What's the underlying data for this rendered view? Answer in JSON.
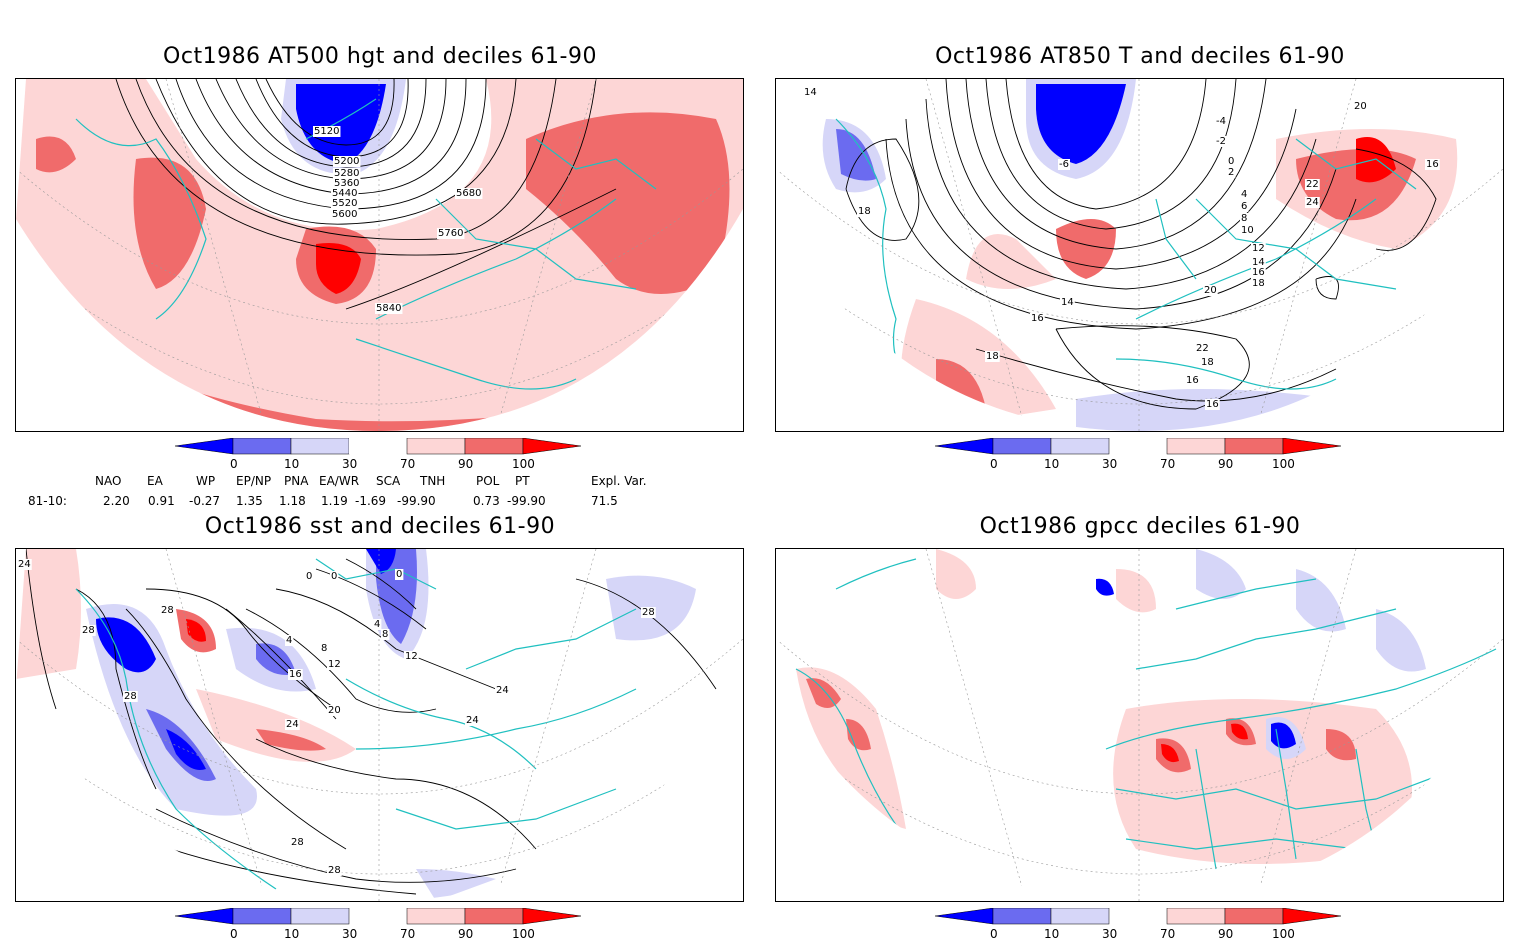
{
  "panels": {
    "p1": {
      "title": "Oct1986 AT500 hgt and deciles 61-90",
      "contour_labels": [
        "5120",
        "5200",
        "5280",
        "5360",
        "5440",
        "5520",
        "5600",
        "5680",
        "5760",
        "5840"
      ]
    },
    "p2": {
      "title": "Oct1986 AT850 T and deciles 61-90",
      "contour_labels": [
        "-6",
        "-4",
        "-2",
        "0",
        "2",
        "4",
        "6",
        "8",
        "10",
        "12",
        "14",
        "16",
        "18",
        "20",
        "22",
        "24",
        "16",
        "14",
        "16",
        "18",
        "20",
        "22",
        "18",
        "16",
        "16",
        "18",
        "14"
      ]
    },
    "p3": {
      "title": "Oct1986 sst and deciles 61-90",
      "contour_labels": [
        "24",
        "28",
        "28",
        "28",
        "0",
        "0",
        "0",
        "4",
        "8",
        "12",
        "16",
        "20",
        "24",
        "28",
        "28",
        "24",
        "24",
        "4",
        "8",
        "12",
        "28"
      ]
    },
    "p4": {
      "title": "Oct1986 gpcc deciles 61-90",
      "contour_labels": []
    }
  },
  "colorbar": {
    "labels": [
      "0",
      "10",
      "30",
      "70",
      "90",
      "100"
    ],
    "colors": [
      "#0000ff",
      "#6b6bf0",
      "#d6d6f8",
      "#ffffff",
      "#fdd6d6",
      "#f06b6b",
      "#ff0000"
    ]
  },
  "indices": {
    "headers": [
      "NAO",
      "EA",
      "WP",
      "EP/NP",
      "PNA",
      "EA/WR",
      "SCA",
      "TNH",
      "POL",
      "PT",
      "Expl. Var."
    ],
    "row_label": "81-10:",
    "values": [
      "2.20",
      "0.91",
      "-0.27",
      "1.35",
      "1.18",
      "1.19",
      "-1.69",
      "-99.90",
      "0.73",
      "-99.90",
      "71.5"
    ]
  },
  "style": {
    "coast_color": "#20c0c0",
    "grid_color": "#999999"
  }
}
